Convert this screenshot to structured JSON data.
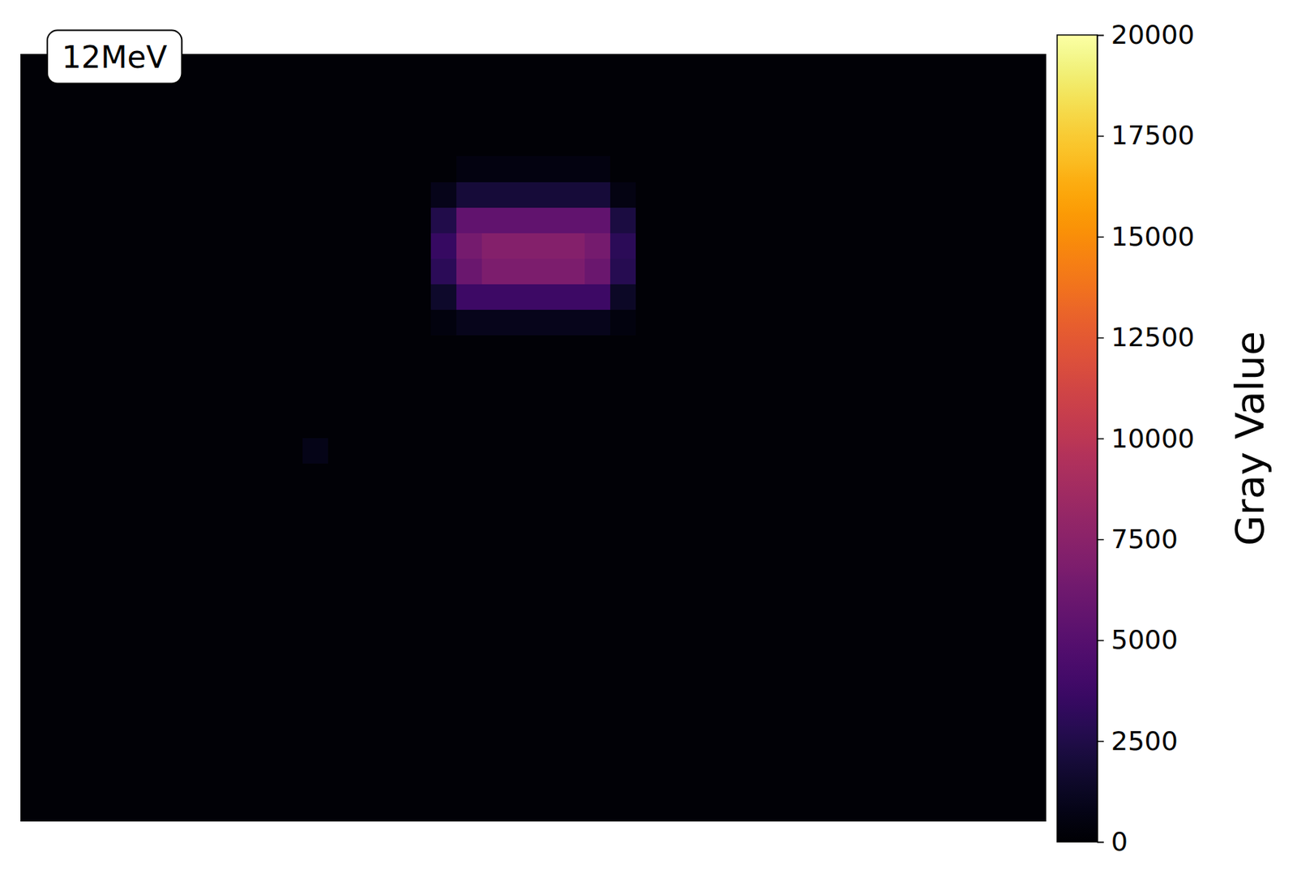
{
  "chart_data": {
    "type": "heatmap",
    "title": "12MeV",
    "tick_labels": false,
    "color": "inferno",
    "colorbar_label": "Gray Value",
    "colorbar_range": [
      0,
      20000
    ],
    "colorbar_ticks": [
      0,
      2500,
      5000,
      7500,
      10000,
      12500,
      15000,
      17500,
      20000
    ],
    "z": [
      [
        200,
        200,
        200,
        200,
        200,
        200,
        200,
        200,
        200,
        200,
        200,
        200,
        200,
        200,
        200,
        200,
        200,
        200,
        200,
        200,
        200,
        200,
        200,
        200,
        200,
        200,
        200,
        200,
        200,
        200,
        200,
        200,
        200,
        200,
        200,
        200,
        200,
        200,
        200,
        200
      ],
      [
        200,
        200,
        200,
        200,
        200,
        200,
        200,
        200,
        200,
        200,
        200,
        200,
        200,
        200,
        200,
        200,
        200,
        200,
        200,
        200,
        200,
        200,
        200,
        200,
        200,
        200,
        200,
        200,
        200,
        200,
        200,
        200,
        200,
        200,
        200,
        200,
        200,
        200,
        200,
        200
      ],
      [
        200,
        200,
        200,
        200,
        200,
        200,
        200,
        200,
        200,
        200,
        200,
        200,
        200,
        200,
        200,
        200,
        200,
        200,
        200,
        200,
        200,
        200,
        200,
        200,
        200,
        200,
        200,
        200,
        200,
        200,
        200,
        200,
        200,
        200,
        200,
        200,
        200,
        200,
        200,
        200
      ],
      [
        200,
        200,
        200,
        200,
        200,
        200,
        200,
        200,
        200,
        200,
        200,
        200,
        200,
        200,
        200,
        200,
        200,
        200,
        200,
        200,
        200,
        200,
        200,
        200,
        200,
        200,
        200,
        200,
        200,
        200,
        200,
        200,
        200,
        200,
        200,
        200,
        200,
        200,
        200,
        200
      ],
      [
        200,
        200,
        200,
        200,
        200,
        200,
        200,
        200,
        200,
        200,
        200,
        200,
        200,
        200,
        200,
        200,
        200,
        600,
        600,
        600,
        600,
        600,
        600,
        200,
        200,
        200,
        200,
        200,
        200,
        200,
        200,
        200,
        200,
        200,
        200,
        200,
        200,
        200,
        200,
        200
      ],
      [
        200,
        200,
        200,
        200,
        200,
        200,
        200,
        200,
        200,
        200,
        200,
        200,
        200,
        200,
        200,
        200,
        900,
        2000,
        2000,
        2000,
        2000,
        2000,
        2000,
        700,
        200,
        200,
        200,
        200,
        200,
        200,
        200,
        200,
        200,
        200,
        200,
        200,
        200,
        200,
        200,
        200
      ],
      [
        200,
        200,
        200,
        200,
        200,
        200,
        200,
        200,
        200,
        200,
        200,
        200,
        200,
        200,
        200,
        200,
        2500,
        5500,
        5500,
        5500,
        5500,
        5500,
        5500,
        2200,
        200,
        200,
        200,
        200,
        200,
        200,
        200,
        200,
        200,
        200,
        200,
        200,
        200,
        200,
        200,
        200
      ],
      [
        200,
        200,
        200,
        200,
        200,
        200,
        200,
        200,
        200,
        200,
        200,
        200,
        200,
        200,
        200,
        200,
        3500,
        6500,
        7200,
        7200,
        7200,
        7200,
        6500,
        3000,
        200,
        200,
        200,
        200,
        200,
        200,
        200,
        200,
        200,
        200,
        200,
        200,
        200,
        200,
        200,
        200
      ],
      [
        200,
        200,
        200,
        200,
        200,
        200,
        200,
        200,
        200,
        200,
        200,
        200,
        200,
        200,
        200,
        200,
        3000,
        6000,
        6800,
        6800,
        6800,
        6800,
        6000,
        2800,
        200,
        200,
        200,
        200,
        200,
        200,
        200,
        200,
        200,
        200,
        200,
        200,
        200,
        200,
        200,
        200
      ],
      [
        200,
        200,
        200,
        200,
        200,
        200,
        200,
        200,
        200,
        200,
        200,
        200,
        200,
        200,
        200,
        200,
        1500,
        3800,
        3800,
        3800,
        3800,
        3800,
        3800,
        1400,
        200,
        200,
        200,
        200,
        200,
        200,
        200,
        200,
        200,
        200,
        200,
        200,
        200,
        200,
        200,
        200
      ],
      [
        200,
        200,
        200,
        200,
        200,
        200,
        200,
        200,
        200,
        200,
        200,
        200,
        200,
        200,
        200,
        200,
        500,
        1000,
        1000,
        1000,
        1000,
        1000,
        1000,
        500,
        200,
        200,
        200,
        200,
        200,
        200,
        200,
        200,
        200,
        200,
        200,
        200,
        200,
        200,
        200,
        200
      ],
      [
        200,
        200,
        200,
        200,
        200,
        200,
        200,
        200,
        200,
        200,
        200,
        200,
        200,
        200,
        200,
        200,
        200,
        200,
        200,
        200,
        200,
        200,
        200,
        200,
        200,
        200,
        200,
        200,
        200,
        200,
        200,
        200,
        200,
        200,
        200,
        200,
        200,
        200,
        200,
        200
      ],
      [
        200,
        200,
        200,
        200,
        200,
        200,
        200,
        200,
        200,
        200,
        200,
        200,
        200,
        200,
        200,
        200,
        200,
        200,
        200,
        200,
        200,
        200,
        200,
        200,
        200,
        200,
        200,
        200,
        200,
        200,
        200,
        200,
        200,
        200,
        200,
        200,
        200,
        200,
        200,
        200
      ],
      [
        200,
        200,
        200,
        200,
        200,
        200,
        200,
        200,
        200,
        200,
        200,
        200,
        200,
        200,
        200,
        200,
        200,
        200,
        200,
        200,
        200,
        200,
        200,
        200,
        200,
        200,
        200,
        200,
        200,
        200,
        200,
        200,
        200,
        200,
        200,
        200,
        200,
        200,
        200,
        200
      ],
      [
        200,
        200,
        200,
        200,
        200,
        200,
        200,
        200,
        200,
        200,
        200,
        200,
        200,
        200,
        200,
        200,
        200,
        200,
        200,
        200,
        200,
        200,
        200,
        200,
        200,
        200,
        200,
        200,
        200,
        200,
        200,
        200,
        200,
        200,
        200,
        200,
        200,
        200,
        200,
        200
      ],
      [
        200,
        200,
        200,
        200,
        200,
        200,
        200,
        200,
        200,
        200,
        200,
        800,
        200,
        200,
        200,
        200,
        200,
        200,
        200,
        200,
        200,
        200,
        200,
        200,
        200,
        200,
        200,
        200,
        200,
        200,
        200,
        200,
        200,
        200,
        200,
        200,
        200,
        200,
        200,
        200
      ],
      [
        200,
        200,
        200,
        200,
        200,
        200,
        200,
        200,
        200,
        200,
        200,
        200,
        200,
        200,
        200,
        200,
        200,
        200,
        200,
        200,
        200,
        200,
        200,
        200,
        200,
        200,
        200,
        200,
        200,
        200,
        200,
        200,
        200,
        200,
        200,
        200,
        200,
        200,
        200,
        200
      ],
      [
        200,
        200,
        200,
        200,
        200,
        200,
        200,
        200,
        200,
        200,
        200,
        200,
        200,
        200,
        200,
        200,
        200,
        200,
        200,
        200,
        200,
        200,
        200,
        200,
        200,
        200,
        200,
        200,
        200,
        200,
        200,
        200,
        200,
        200,
        200,
        200,
        200,
        200,
        200,
        200
      ],
      [
        200,
        200,
        200,
        200,
        200,
        200,
        200,
        200,
        200,
        200,
        200,
        200,
        200,
        200,
        200,
        200,
        200,
        200,
        200,
        200,
        200,
        200,
        200,
        200,
        200,
        200,
        200,
        200,
        200,
        200,
        200,
        200,
        200,
        200,
        200,
        200,
        200,
        200,
        200,
        200
      ],
      [
        200,
        200,
        200,
        200,
        200,
        200,
        200,
        200,
        200,
        200,
        200,
        200,
        200,
        200,
        200,
        200,
        200,
        200,
        200,
        200,
        200,
        200,
        200,
        200,
        200,
        200,
        200,
        200,
        200,
        200,
        200,
        200,
        200,
        200,
        200,
        200,
        200,
        200,
        200,
        200
      ],
      [
        200,
        200,
        200,
        200,
        200,
        200,
        200,
        200,
        200,
        200,
        200,
        200,
        200,
        200,
        200,
        200,
        200,
        200,
        200,
        200,
        200,
        200,
        200,
        200,
        200,
        200,
        200,
        200,
        200,
        200,
        200,
        200,
        200,
        200,
        200,
        200,
        200,
        200,
        200,
        200
      ],
      [
        200,
        200,
        200,
        200,
        200,
        200,
        200,
        200,
        200,
        200,
        200,
        200,
        200,
        200,
        200,
        200,
        200,
        200,
        200,
        200,
        200,
        200,
        200,
        200,
        200,
        200,
        200,
        200,
        200,
        200,
        200,
        200,
        200,
        200,
        200,
        200,
        200,
        200,
        200,
        200
      ],
      [
        200,
        200,
        200,
        200,
        200,
        200,
        200,
        200,
        200,
        200,
        200,
        200,
        200,
        200,
        200,
        200,
        200,
        200,
        200,
        200,
        200,
        200,
        200,
        200,
        200,
        200,
        200,
        200,
        200,
        200,
        200,
        200,
        200,
        200,
        200,
        200,
        200,
        200,
        200,
        200
      ],
      [
        200,
        200,
        200,
        200,
        200,
        200,
        200,
        200,
        200,
        200,
        200,
        200,
        200,
        200,
        200,
        200,
        200,
        200,
        200,
        200,
        200,
        200,
        200,
        200,
        200,
        200,
        200,
        200,
        200,
        200,
        200,
        200,
        200,
        200,
        200,
        200,
        200,
        200,
        200,
        200
      ],
      [
        200,
        200,
        200,
        200,
        200,
        200,
        200,
        200,
        200,
        200,
        200,
        200,
        200,
        200,
        200,
        200,
        200,
        200,
        200,
        200,
        200,
        200,
        200,
        200,
        200,
        200,
        200,
        200,
        200,
        200,
        200,
        200,
        200,
        200,
        200,
        200,
        200,
        200,
        200,
        200
      ],
      [
        200,
        200,
        200,
        200,
        200,
        200,
        200,
        200,
        200,
        200,
        200,
        200,
        200,
        200,
        200,
        200,
        200,
        200,
        200,
        200,
        200,
        200,
        200,
        200,
        200,
        200,
        200,
        200,
        200,
        200,
        200,
        200,
        200,
        200,
        200,
        200,
        200,
        200,
        200,
        200
      ],
      [
        200,
        200,
        200,
        200,
        200,
        200,
        200,
        200,
        200,
        200,
        200,
        200,
        200,
        200,
        200,
        200,
        200,
        200,
        200,
        200,
        200,
        200,
        200,
        200,
        200,
        200,
        200,
        200,
        200,
        200,
        200,
        200,
        200,
        200,
        200,
        200,
        200,
        200,
        200,
        200
      ],
      [
        200,
        200,
        200,
        200,
        200,
        200,
        200,
        200,
        200,
        200,
        200,
        200,
        200,
        200,
        200,
        200,
        200,
        200,
        200,
        200,
        200,
        200,
        200,
        200,
        200,
        200,
        200,
        200,
        200,
        200,
        200,
        200,
        200,
        200,
        200,
        200,
        200,
        200,
        200,
        200
      ],
      [
        200,
        200,
        200,
        200,
        200,
        200,
        200,
        200,
        200,
        200,
        200,
        200,
        200,
        200,
        200,
        200,
        200,
        200,
        200,
        200,
        200,
        200,
        200,
        200,
        200,
        200,
        200,
        200,
        200,
        200,
        200,
        200,
        200,
        200,
        200,
        200,
        200,
        200,
        200,
        200
      ],
      [
        200,
        200,
        200,
        200,
        200,
        200,
        200,
        200,
        200,
        200,
        200,
        200,
        200,
        200,
        200,
        200,
        200,
        200,
        200,
        200,
        200,
        200,
        200,
        200,
        200,
        200,
        200,
        200,
        200,
        200,
        200,
        200,
        200,
        200,
        200,
        200,
        200,
        200,
        200,
        200
      ]
    ]
  }
}
